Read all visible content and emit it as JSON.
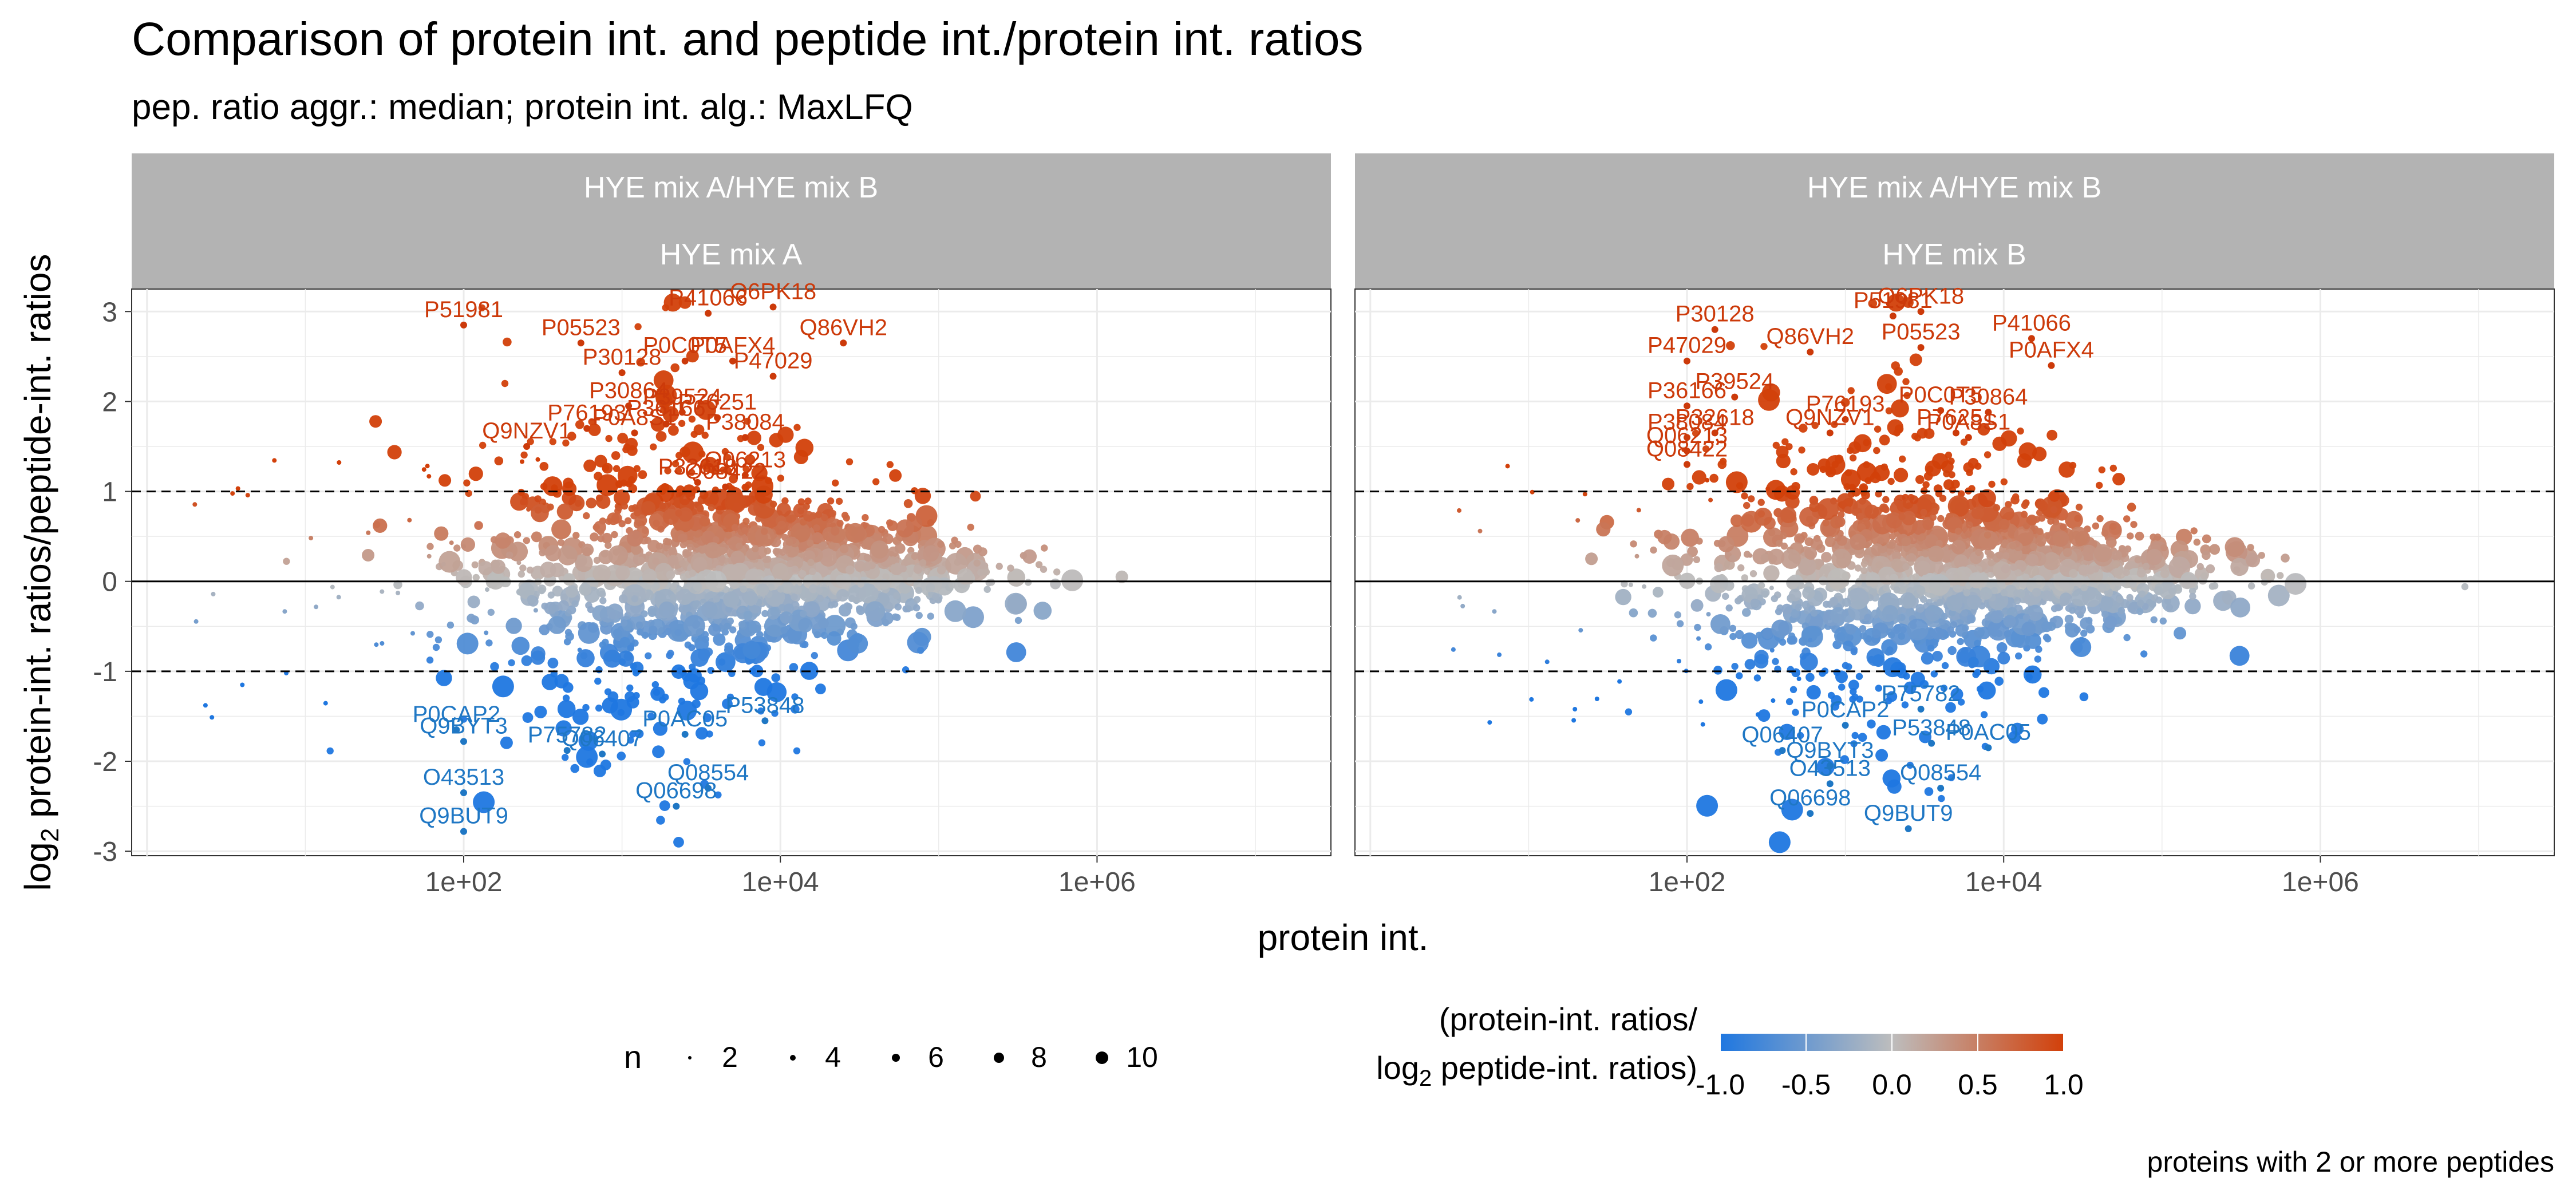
{
  "title": "Comparison of protein int. and peptide int./protein int. ratios",
  "subtitle": "pep. ratio aggr.: median; protein int. alg.: MaxLFQ",
  "caption": "proteins with 2 or more peptides",
  "colors": {
    "up": "#cc3a0a",
    "down": "#1f77c4",
    "mid": "#bdbdbd",
    "strip": "#b3b3b3"
  },
  "chart_data": {
    "type": "scatter",
    "xlabel": "protein int.",
    "ylabel_prefix": "log",
    "ylabel_sub": "2",
    "ylabel_rest": " protein-int. ratios/peptide-int. ratios",
    "x_scale": "log10",
    "xlim": [
      0.8,
      30000000
    ],
    "ylim": [
      -3.05,
      3.25
    ],
    "x_ticks": [
      {
        "value": 100,
        "label": "1e+02"
      },
      {
        "value": 10000,
        "label": "1e+04"
      },
      {
        "value": 1000000,
        "label": "1e+06"
      }
    ],
    "y_ticks": [
      {
        "value": 3,
        "label": "3"
      },
      {
        "value": 2,
        "label": "2"
      },
      {
        "value": 1,
        "label": "1"
      },
      {
        "value": 0,
        "label": "0"
      },
      {
        "value": -1,
        "label": "-1"
      },
      {
        "value": -2,
        "label": "-2"
      },
      {
        "value": -3,
        "label": "-3"
      }
    ],
    "hlines": [
      {
        "y": 1,
        "style": "dashed"
      },
      {
        "y": 0,
        "style": "solid"
      },
      {
        "y": -1,
        "style": "dashed"
      }
    ],
    "grid": true,
    "legend_n": {
      "title": "n",
      "labels": [
        "2",
        "4",
        "6",
        "8",
        "10"
      ]
    },
    "legend_color": {
      "title_line1": "(protein-int. ratios/",
      "title_line2_prefix": "log",
      "title_line2_sub": "2",
      "title_line2_rest": " peptide-int. ratios)",
      "labels": [
        "-1.0",
        "-0.5",
        "0.0",
        "0.5",
        "1.0"
      ],
      "values": [
        -1,
        -0.5,
        0,
        0.5,
        1
      ]
    },
    "panels": [
      {
        "strip_top": "HYE mix A/HYE mix B",
        "strip_bottom": "HYE mix A",
        "labels": [
          {
            "text": "P51981",
            "x": 100,
            "y": 2.85
          },
          {
            "text": "P05523",
            "x": 550,
            "y": 2.65
          },
          {
            "text": "Q6PK18",
            "x": 9000,
            "y": 3.05
          },
          {
            "text": "P41066",
            "x": 3500,
            "y": 2.98
          },
          {
            "text": "Q86VH2",
            "x": 25000,
            "y": 2.65
          },
          {
            "text": "P30128",
            "x": 1000,
            "y": 2.32
          },
          {
            "text": "P0C0T5",
            "x": 2500,
            "y": 2.45
          },
          {
            "text": "P0AFX4",
            "x": 5000,
            "y": 2.45
          },
          {
            "text": "P47029",
            "x": 9000,
            "y": 2.28
          },
          {
            "text": "P30864",
            "x": 1100,
            "y": 1.95
          },
          {
            "text": "P39524",
            "x": 2400,
            "y": 1.88
          },
          {
            "text": "P76251",
            "x": 4000,
            "y": 1.82
          },
          {
            "text": "P36166",
            "x": 1900,
            "y": 1.75
          },
          {
            "text": "P76193",
            "x": 600,
            "y": 1.7
          },
          {
            "text": "P0A8S1",
            "x": 1200,
            "y": 1.65
          },
          {
            "text": "P38084",
            "x": 6000,
            "y": 1.6
          },
          {
            "text": "Q9NZV1",
            "x": 250,
            "y": 1.5
          },
          {
            "text": "Q06213",
            "x": 6000,
            "y": 1.18
          },
          {
            "text": "P32618",
            "x": 3000,
            "y": 1.1
          },
          {
            "text": "Q08422",
            "x": 4500,
            "y": 1.05
          },
          {
            "text": "P0CAP2",
            "x": 90,
            "y": -1.65
          },
          {
            "text": "P0AC05",
            "x": 2500,
            "y": -1.7
          },
          {
            "text": "P53848",
            "x": 8000,
            "y": -1.55
          },
          {
            "text": "Q9BYT3",
            "x": 100,
            "y": -1.78
          },
          {
            "text": "P75782",
            "x": 450,
            "y": -1.88
          },
          {
            "text": "Q06407",
            "x": 750,
            "y": -1.92
          },
          {
            "text": "Q08554",
            "x": 3500,
            "y": -2.3
          },
          {
            "text": "O43513",
            "x": 100,
            "y": -2.35
          },
          {
            "text": "Q06698",
            "x": 2200,
            "y": -2.5
          },
          {
            "text": "Q9BUT9",
            "x": 100,
            "y": -2.78
          }
        ]
      },
      {
        "strip_top": "HYE mix A/HYE mix B",
        "strip_bottom": "HYE mix B",
        "labels": [
          {
            "text": "P30128",
            "x": 150,
            "y": 2.8
          },
          {
            "text": "P51981",
            "x": 2000,
            "y": 2.95
          },
          {
            "text": "Q6PK18",
            "x": 3000,
            "y": 3.0
          },
          {
            "text": "P41066",
            "x": 15000,
            "y": 2.7
          },
          {
            "text": "P47029",
            "x": 100,
            "y": 2.45
          },
          {
            "text": "Q86VH2",
            "x": 600,
            "y": 2.55
          },
          {
            "text": "P05523",
            "x": 3000,
            "y": 2.6
          },
          {
            "text": "P0AFX4",
            "x": 20000,
            "y": 2.4
          },
          {
            "text": "P36166",
            "x": 100,
            "y": 1.95
          },
          {
            "text": "P39524",
            "x": 200,
            "y": 2.05
          },
          {
            "text": "P76193",
            "x": 1000,
            "y": 1.8
          },
          {
            "text": "P0C0T5",
            "x": 4000,
            "y": 1.9
          },
          {
            "text": "P30864",
            "x": 8000,
            "y": 1.88
          },
          {
            "text": "P38084",
            "x": 100,
            "y": 1.6
          },
          {
            "text": "P32618",
            "x": 150,
            "y": 1.65
          },
          {
            "text": "P76251",
            "x": 5000,
            "y": 1.65
          },
          {
            "text": "P0A8S1",
            "x": 6000,
            "y": 1.6
          },
          {
            "text": "Q08422",
            "x": 100,
            "y": 1.3
          },
          {
            "text": "Q06213",
            "x": 100,
            "y": 1.45
          },
          {
            "text": "Q9NZV1",
            "x": 800,
            "y": 1.65
          },
          {
            "text": "P0CAP2",
            "x": 1000,
            "y": -1.6
          },
          {
            "text": "P75782",
            "x": 3000,
            "y": -1.42
          },
          {
            "text": "P53848",
            "x": 3500,
            "y": -1.8
          },
          {
            "text": "P0AC05",
            "x": 8000,
            "y": -1.85
          },
          {
            "text": "Q06407",
            "x": 400,
            "y": -1.88
          },
          {
            "text": "Q9BYT3",
            "x": 800,
            "y": -2.05
          },
          {
            "text": "O43513",
            "x": 800,
            "y": -2.25
          },
          {
            "text": "Q08554",
            "x": 4000,
            "y": -2.3
          },
          {
            "text": "Q06698",
            "x": 600,
            "y": -2.58
          },
          {
            "text": "Q9BUT9",
            "x": 2500,
            "y": -2.75
          }
        ]
      }
    ]
  }
}
